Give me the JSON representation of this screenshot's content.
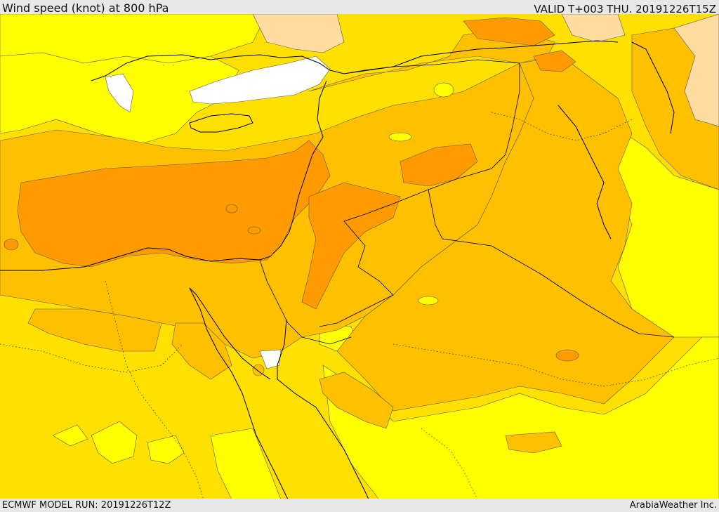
{
  "header": {
    "title": "Wind speed (knot) at 800 hPa",
    "valid": "VALID T+003 THU. 20191226T15Z"
  },
  "footer": {
    "model_run": "ECMWF MODEL RUN: 20191226T12Z",
    "credit": "ArabiaWeather Inc."
  },
  "map": {
    "variable": "wind speed",
    "units": "knot",
    "level": "800 hPa",
    "shading_colors": [
      "#ffffff",
      "#ffff00",
      "#ffe000",
      "#ffc000",
      "#ff9a00",
      "#ffdca0"
    ],
    "coastline_color": "#000000"
  }
}
